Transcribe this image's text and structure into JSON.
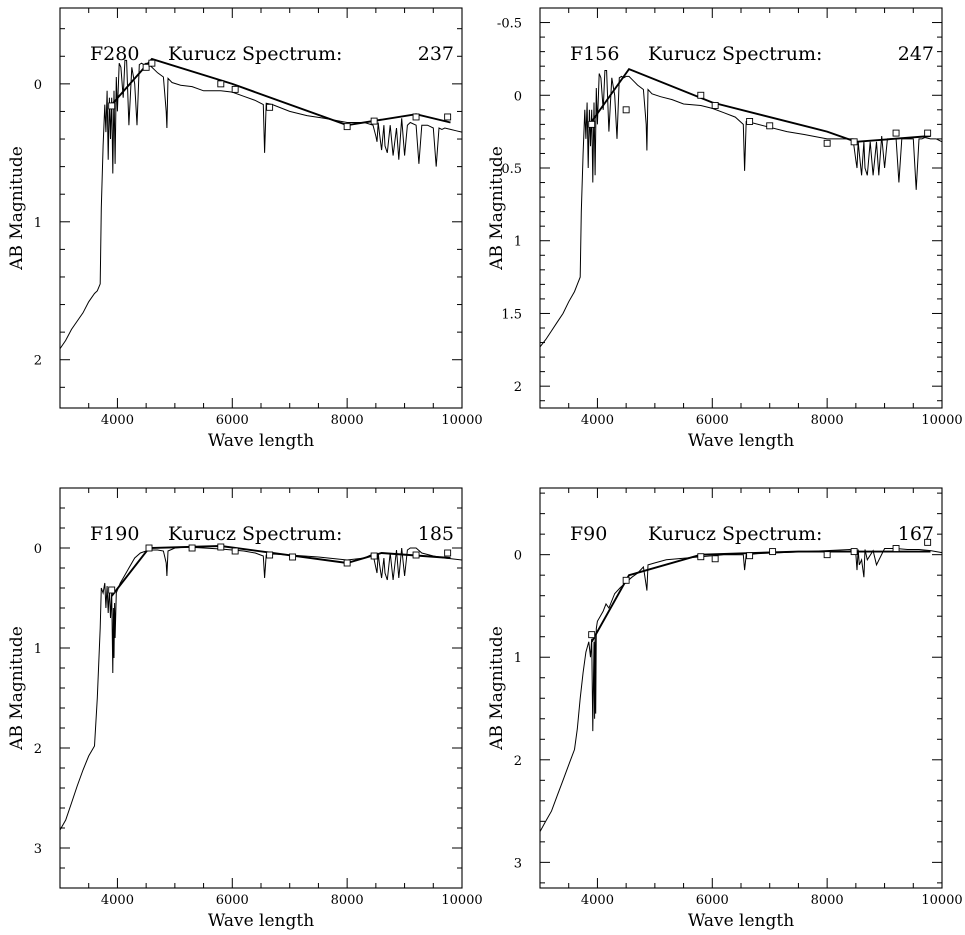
{
  "chart_data": [
    {
      "type": "line",
      "title_filter": "F280",
      "title_model": "Kurucz Spectrum:",
      "title_number": "237",
      "xlabel": "Wave length",
      "ylabel": "AB Magnitude",
      "xlim": [
        3000,
        10000
      ],
      "ylim": [
        2.35,
        -0.55
      ],
      "y_inverted": true,
      "xticks": [
        4000,
        6000,
        8000,
        10000
      ],
      "yticks": [
        0,
        1,
        2
      ],
      "yticklabels": [
        "0",
        "1",
        "2"
      ],
      "series": [
        {
          "role": "spectrum",
          "x": [
            3000,
            3100,
            3200,
            3300,
            3400,
            3500,
            3600,
            3650,
            3700,
            3720,
            3750,
            3780,
            3800,
            3820,
            3840,
            3860,
            3880,
            3900,
            3920,
            3940,
            3960,
            3980,
            4000,
            4030,
            4060,
            4100,
            4130,
            4160,
            4200,
            4250,
            4300,
            4340,
            4380,
            4420,
            4460,
            4500,
            4550,
            4600,
            4700,
            4800,
            4850,
            4861,
            4880,
            4950,
            5100,
            5300,
            5500,
            5800,
            6000,
            6200,
            6400,
            6540,
            6563,
            6590,
            6700,
            7000,
            7300,
            7600,
            8000,
            8300,
            8450,
            8500,
            8520,
            8540,
            8560,
            8600,
            8640,
            8660,
            8700,
            8750,
            8800,
            8860,
            8900,
            8950,
            9000,
            9050,
            9100,
            9200,
            9250,
            9300,
            9400,
            9500,
            9550,
            9600,
            9650,
            9700,
            9800,
            9900,
            10000
          ],
          "y": [
            1.92,
            1.86,
            1.78,
            1.72,
            1.66,
            1.58,
            1.52,
            1.5,
            1.45,
            0.9,
            0.45,
            0.15,
            0.35,
            0.05,
            0.55,
            0.1,
            0.4,
            0.1,
            0.65,
            0.05,
            0.58,
            -0.05,
            0.2,
            -0.15,
            -0.12,
            0.1,
            -0.17,
            -0.17,
            0.3,
            -0.12,
            0.0,
            0.3,
            -0.14,
            -0.15,
            -0.14,
            -0.15,
            -0.14,
            -0.12,
            -0.08,
            -0.05,
            0.2,
            0.32,
            -0.04,
            -0.01,
            0.01,
            0.02,
            0.05,
            0.05,
            0.06,
            0.09,
            0.12,
            0.15,
            0.5,
            0.14,
            0.15,
            0.2,
            0.23,
            0.25,
            0.28,
            0.28,
            0.3,
            0.38,
            0.42,
            0.28,
            0.35,
            0.48,
            0.3,
            0.45,
            0.5,
            0.3,
            0.52,
            0.32,
            0.55,
            0.25,
            0.52,
            0.3,
            0.28,
            0.3,
            0.58,
            0.3,
            0.3,
            0.32,
            0.6,
            0.32,
            0.33,
            0.32,
            0.33,
            0.34,
            0.35
          ]
        },
        {
          "role": "fit",
          "x": [
            3900,
            4600,
            6000,
            8000,
            9200,
            9800
          ],
          "y": [
            0.15,
            -0.18,
            0.0,
            0.3,
            0.22,
            0.28
          ]
        },
        {
          "role": "observed",
          "x": [
            3900,
            4500,
            4600,
            5800,
            6050,
            6650,
            8000,
            8470,
            9200,
            9750
          ],
          "y": [
            0.16,
            -0.12,
            -0.15,
            0.0,
            0.04,
            0.17,
            0.31,
            0.27,
            0.24,
            0.24
          ]
        }
      ]
    },
    {
      "type": "line",
      "title_filter": "F156",
      "title_model": "Kurucz Spectrum:",
      "title_number": "247",
      "xlabel": "Wave length",
      "ylabel": "AB Magnitude",
      "xlim": [
        3000,
        10000
      ],
      "ylim": [
        2.15,
        -0.6
      ],
      "y_inverted": true,
      "xticks": [
        4000,
        6000,
        8000,
        10000
      ],
      "yticks": [
        -0.5,
        0,
        0.5,
        1,
        1.5,
        2
      ],
      "yticklabels": [
        "-0.5",
        "0",
        "0.5",
        "1",
        "1.5",
        "2"
      ],
      "series": [
        {
          "role": "spectrum",
          "x": [
            3000,
            3100,
            3200,
            3300,
            3400,
            3500,
            3600,
            3650,
            3700,
            3720,
            3750,
            3780,
            3800,
            3820,
            3840,
            3860,
            3880,
            3900,
            3920,
            3940,
            3960,
            3980,
            4000,
            4030,
            4060,
            4100,
            4130,
            4160,
            4200,
            4250,
            4300,
            4340,
            4380,
            4420,
            4460,
            4500,
            4550,
            4600,
            4700,
            4800,
            4850,
            4861,
            4880,
            4950,
            5100,
            5300,
            5500,
            5800,
            6000,
            6200,
            6400,
            6540,
            6563,
            6590,
            6700,
            7000,
            7300,
            7600,
            8000,
            8300,
            8450,
            8500,
            8520,
            8540,
            8560,
            8600,
            8640,
            8660,
            8700,
            8750,
            8800,
            8860,
            8900,
            8950,
            9000,
            9050,
            9100,
            9200,
            9250,
            9300,
            9400,
            9500,
            9550,
            9600,
            9650,
            9700,
            9800,
            9900,
            10000
          ],
          "y": [
            1.73,
            1.68,
            1.62,
            1.56,
            1.5,
            1.42,
            1.35,
            1.3,
            1.25,
            0.8,
            0.4,
            0.1,
            0.3,
            0.05,
            0.5,
            0.1,
            0.35,
            0.1,
            0.6,
            0.05,
            0.55,
            -0.05,
            0.2,
            -0.15,
            -0.12,
            0.1,
            -0.17,
            -0.17,
            0.25,
            -0.12,
            0.0,
            0.3,
            -0.12,
            -0.13,
            -0.12,
            -0.13,
            -0.13,
            -0.11,
            -0.07,
            -0.04,
            0.2,
            0.38,
            -0.04,
            -0.01,
            0.01,
            0.03,
            0.06,
            0.07,
            0.09,
            0.12,
            0.15,
            0.2,
            0.52,
            0.18,
            0.19,
            0.22,
            0.25,
            0.27,
            0.3,
            0.3,
            0.3,
            0.45,
            0.5,
            0.32,
            0.4,
            0.55,
            0.32,
            0.5,
            0.55,
            0.32,
            0.55,
            0.32,
            0.55,
            0.28,
            0.5,
            0.3,
            0.3,
            0.3,
            0.6,
            0.3,
            0.3,
            0.3,
            0.65,
            0.3,
            0.3,
            0.29,
            0.3,
            0.3,
            0.32
          ]
        },
        {
          "role": "fit",
          "x": [
            3900,
            4550,
            6000,
            8000,
            8500,
            9800
          ],
          "y": [
            0.18,
            -0.18,
            0.05,
            0.25,
            0.32,
            0.28
          ]
        },
        {
          "role": "observed",
          "x": [
            3900,
            4500,
            5800,
            6050,
            6650,
            7000,
            8000,
            8470,
            9200,
            9750
          ],
          "y": [
            0.2,
            0.1,
            0.0,
            0.07,
            0.18,
            0.21,
            0.33,
            0.32,
            0.26,
            0.26
          ]
        }
      ]
    },
    {
      "type": "line",
      "title_filter": "F190",
      "title_model": "Kurucz Spectrum:",
      "title_number": "185",
      "xlabel": "Wave length",
      "ylabel": "AB Magnitude",
      "xlim": [
        3000,
        10000
      ],
      "ylim": [
        3.4,
        -0.6
      ],
      "y_inverted": true,
      "xticks": [
        4000,
        6000,
        8000,
        10000
      ],
      "yticks": [
        0,
        1,
        2,
        3
      ],
      "yticklabels": [
        "0",
        "1",
        "2",
        "3"
      ],
      "series": [
        {
          "role": "spectrum",
          "x": [
            3000,
            3100,
            3200,
            3300,
            3400,
            3500,
            3600,
            3650,
            3700,
            3720,
            3750,
            3780,
            3800,
            3820,
            3840,
            3860,
            3880,
            3900,
            3920,
            3930,
            3940,
            3950,
            3960,
            3980,
            4000,
            4050,
            4100,
            4200,
            4300,
            4400,
            4500,
            4600,
            4700,
            4800,
            4850,
            4861,
            4880,
            5000,
            5200,
            5500,
            5800,
            6000,
            6200,
            6400,
            6540,
            6563,
            6590,
            6700,
            7000,
            7500,
            8000,
            8300,
            8450,
            8500,
            8520,
            8540,
            8560,
            8600,
            8640,
            8660,
            8700,
            8750,
            8800,
            8860,
            8900,
            8950,
            9000,
            9050,
            9100,
            9200,
            9300,
            9500,
            9700,
            10000
          ],
          "y": [
            2.82,
            2.72,
            2.55,
            2.38,
            2.22,
            2.08,
            1.98,
            1.5,
            0.8,
            0.4,
            0.45,
            0.35,
            0.6,
            0.38,
            0.65,
            0.4,
            0.7,
            0.45,
            1.25,
            0.6,
            1.1,
            0.55,
            0.9,
            0.45,
            0.42,
            0.35,
            0.3,
            0.2,
            0.1,
            0.05,
            0.03,
            0.02,
            0.02,
            0.03,
            0.15,
            0.28,
            0.03,
            0.0,
            -0.01,
            0.0,
            0.01,
            0.02,
            0.03,
            0.05,
            0.08,
            0.3,
            0.07,
            0.06,
            0.07,
            0.09,
            0.12,
            0.1,
            0.06,
            0.2,
            0.25,
            0.05,
            0.15,
            0.3,
            0.1,
            0.25,
            0.32,
            0.05,
            0.32,
            0.02,
            0.3,
            0.0,
            0.28,
            0.02,
            0.0,
            0.0,
            0.05,
            0.08,
            0.1,
            0.12
          ]
        },
        {
          "role": "fit",
          "x": [
            3900,
            4550,
            5800,
            8000,
            8600,
            9800
          ],
          "y": [
            0.48,
            0.0,
            -0.02,
            0.15,
            0.05,
            0.1
          ]
        },
        {
          "role": "observed",
          "x": [
            3900,
            4550,
            5300,
            5800,
            6050,
            6650,
            7050,
            8000,
            8470,
            9200,
            9750
          ],
          "y": [
            0.42,
            0.0,
            0.0,
            -0.01,
            0.03,
            0.07,
            0.09,
            0.15,
            0.08,
            0.07,
            0.05
          ]
        }
      ]
    },
    {
      "type": "line",
      "title_filter": "F90",
      "title_model": "Kurucz Spectrum:",
      "title_number": "167",
      "xlabel": "Wave length",
      "ylabel": "AB Magnitude",
      "xlim": [
        3000,
        10000
      ],
      "ylim": [
        3.25,
        -0.65
      ],
      "y_inverted": true,
      "xticks": [
        4000,
        6000,
        8000,
        10000
      ],
      "yticks": [
        0,
        1,
        2,
        3
      ],
      "yticklabels": [
        "0",
        "1",
        "2",
        "3"
      ],
      "series": [
        {
          "role": "spectrum",
          "x": [
            3000,
            3100,
            3200,
            3300,
            3400,
            3500,
            3600,
            3650,
            3700,
            3750,
            3800,
            3850,
            3880,
            3900,
            3920,
            3940,
            3950,
            3960,
            3970,
            3980,
            4000,
            4050,
            4100,
            4150,
            4200,
            4300,
            4400,
            4500,
            4600,
            4700,
            4800,
            4850,
            4861,
            4880,
            5000,
            5200,
            5400,
            5600,
            5800,
            6000,
            6200,
            6400,
            6540,
            6563,
            6590,
            6800,
            7200,
            7600,
            8000,
            8400,
            8500,
            8520,
            8540,
            8560,
            8600,
            8640,
            8660,
            8700,
            8800,
            8860,
            9000,
            9200,
            9400,
            9600,
            9800,
            10000
          ],
          "y": [
            2.7,
            2.6,
            2.5,
            2.35,
            2.2,
            2.05,
            1.9,
            1.7,
            1.4,
            1.15,
            0.95,
            0.85,
            1.0,
            0.82,
            1.72,
            0.85,
            1.6,
            0.78,
            1.55,
            0.72,
            0.65,
            0.6,
            0.55,
            0.48,
            0.52,
            0.38,
            0.32,
            0.27,
            0.22,
            0.18,
            0.12,
            0.3,
            0.35,
            0.1,
            0.08,
            0.05,
            0.04,
            0.03,
            0.02,
            0.01,
            0.0,
            0.0,
            0.0,
            0.15,
            0.0,
            -0.01,
            -0.02,
            -0.03,
            -0.04,
            -0.05,
            0.0,
            0.15,
            -0.05,
            0.1,
            0.05,
            0.22,
            -0.05,
            0.05,
            -0.04,
            0.1,
            -0.06,
            -0.06,
            -0.05,
            -0.05,
            -0.04,
            -0.02
          ]
        },
        {
          "role": "fit",
          "x": [
            3900,
            4550,
            5800,
            7500,
            9800
          ],
          "y": [
            0.85,
            0.2,
            0.0,
            -0.03,
            -0.03
          ]
        },
        {
          "role": "observed",
          "x": [
            3900,
            4500,
            5800,
            6050,
            6650,
            7050,
            8000,
            8470,
            9200,
            9750
          ],
          "y": [
            0.78,
            0.25,
            0.02,
            0.04,
            0.01,
            -0.03,
            0.0,
            -0.03,
            -0.06,
            -0.12
          ]
        }
      ]
    }
  ]
}
